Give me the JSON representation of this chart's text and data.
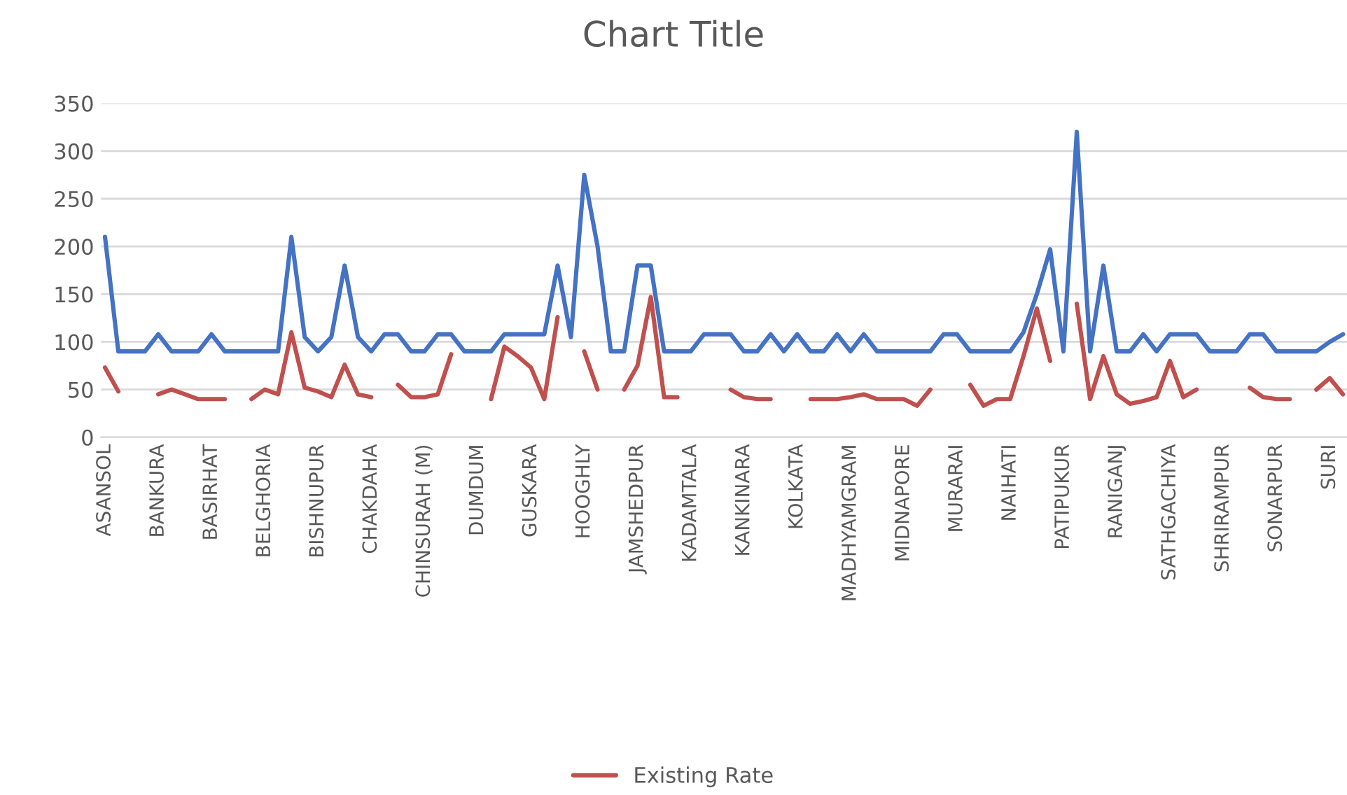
{
  "chart_data": {
    "type": "line",
    "title": "Chart Title",
    "categories": [
      "ASANSOL",
      null,
      null,
      null,
      "BANKURA",
      null,
      null,
      null,
      "BASIRHAT",
      null,
      null,
      null,
      "BELGHORIA",
      null,
      null,
      null,
      "BISHNUPUR",
      null,
      null,
      null,
      "CHAKDAHA",
      null,
      null,
      null,
      "CHINSURAH (M)",
      null,
      null,
      null,
      "DUMDUM",
      null,
      null,
      null,
      "GUSKARA",
      null,
      null,
      null,
      "HOOGHLY",
      null,
      null,
      null,
      "JAMSHEDPUR",
      null,
      null,
      null,
      "KADAMTALA",
      null,
      null,
      null,
      "KANKINARA",
      null,
      null,
      null,
      "KOLKATA",
      null,
      null,
      null,
      "MADHYAMGRAM",
      null,
      null,
      null,
      "MIDNAPORE",
      null,
      null,
      null,
      "MURARAI",
      null,
      null,
      null,
      "NAIHATI",
      null,
      null,
      null,
      "PATIPUKUR",
      null,
      null,
      null,
      "RANIGANJ",
      null,
      null,
      null,
      "SATHGACHIYA",
      null,
      null,
      null,
      "SHRIRAMPUR",
      null,
      null,
      null,
      "SONARPUR",
      null,
      null,
      null,
      "SURI",
      null
    ],
    "series": [
      {
        "color": "#4472c4",
        "values": [
          210,
          90,
          90,
          90,
          108,
          90,
          90,
          90,
          108,
          90,
          90,
          90,
          90,
          90,
          210,
          105,
          90,
          105,
          180,
          105,
          90,
          108,
          108,
          90,
          90,
          108,
          108,
          90,
          90,
          90,
          108,
          108,
          108,
          108,
          180,
          105,
          275,
          200,
          90,
          90,
          180,
          180,
          90,
          90,
          90,
          108,
          108,
          108,
          90,
          90,
          108,
          90,
          108,
          90,
          90,
          108,
          90,
          108,
          90,
          90,
          90,
          90,
          90,
          108,
          108,
          90,
          90,
          90,
          90,
          110,
          150,
          197,
          90,
          320,
          90,
          180,
          90,
          90,
          108,
          90,
          108,
          108,
          108,
          90,
          90,
          90,
          108,
          108,
          90,
          90,
          90,
          90,
          100,
          108
        ]
      },
      {
        "name": "Existing Rate",
        "color": "#c0504d",
        "values": [
          73,
          48,
          null,
          null,
          45,
          50,
          45,
          40,
          40,
          40,
          null,
          40,
          50,
          45,
          110,
          52,
          48,
          42,
          76,
          45,
          42,
          null,
          55,
          42,
          42,
          45,
          87,
          null,
          null,
          40,
          95,
          85,
          73,
          40,
          126,
          null,
          90,
          50,
          null,
          50,
          75,
          147,
          42,
          42,
          null,
          null,
          null,
          50,
          42,
          40,
          40,
          null,
          null,
          40,
          40,
          40,
          42,
          45,
          40,
          40,
          40,
          33,
          50,
          null,
          null,
          55,
          33,
          40,
          40,
          85,
          135,
          80,
          null,
          140,
          40,
          85,
          45,
          35,
          38,
          42,
          80,
          42,
          50,
          null,
          null,
          null,
          52,
          42,
          40,
          40,
          null,
          50,
          62,
          45
        ]
      }
    ],
    "ylim": [
      0,
      350
    ],
    "yticks": [
      0,
      50,
      100,
      150,
      200,
      250,
      300,
      350
    ],
    "grid": "y",
    "legend": "bottom",
    "marker": "none",
    "line_style": "solid"
  }
}
